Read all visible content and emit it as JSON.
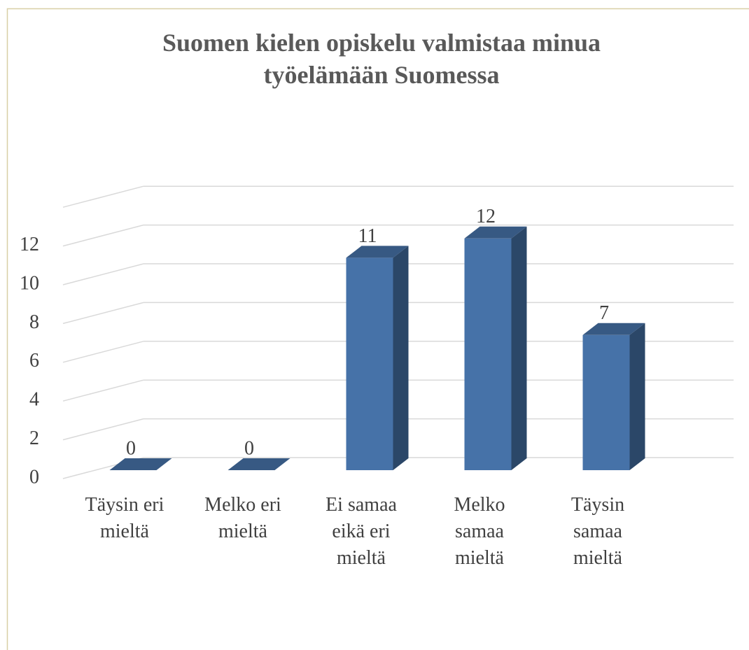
{
  "chart_data": {
    "type": "bar3d",
    "title": "Suomen kielen opiskelu valmistaa minua työelämään Suomessa",
    "categories": [
      "Täysin eri mieltä",
      "Melko eri mieltä",
      "Ei samaa eikä eri mieltä",
      "Melko samaa mieltä",
      "Täysin samaa mieltä"
    ],
    "values": [
      0,
      0,
      11,
      12,
      7
    ],
    "color": "#4672a8",
    "ylim": [
      0,
      14
    ],
    "yticks": [
      0,
      2,
      4,
      6,
      8,
      10,
      12
    ],
    "grid": true
  }
}
